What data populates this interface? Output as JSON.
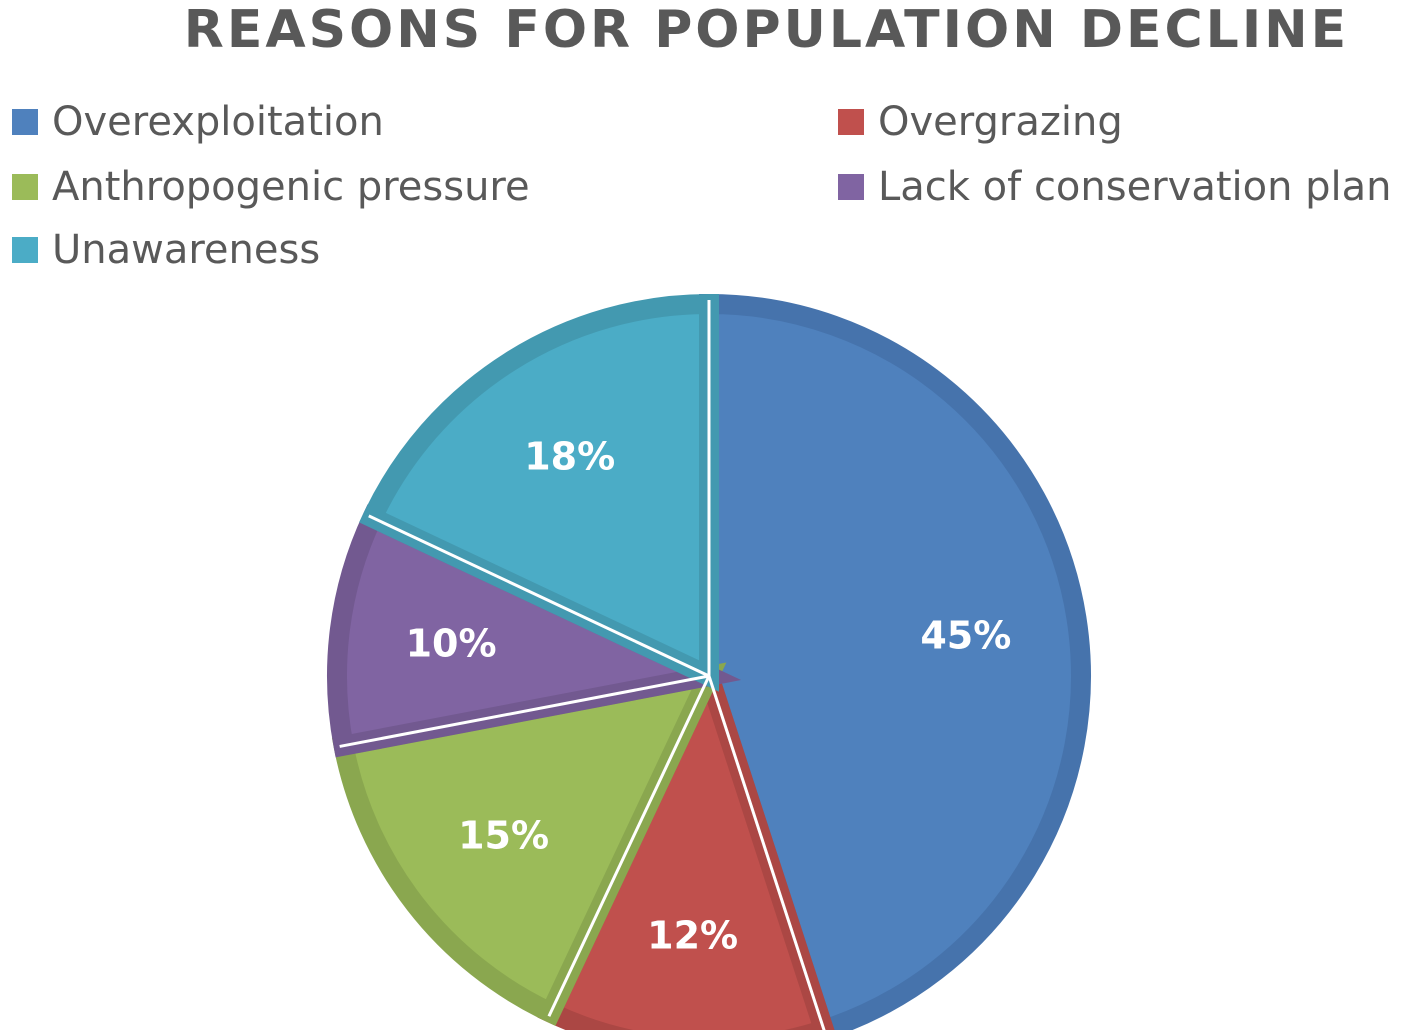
{
  "chart_data": {
    "type": "pie",
    "title": "REASONS FOR POPULATION DECLINE",
    "legend_position": "top",
    "slices": [
      {
        "name": "Overexploitation",
        "value": 45,
        "label": "45%",
        "color": "#4F81BD",
        "edge": "#4673AC"
      },
      {
        "name": "Overgrazing",
        "value": 12,
        "label": "12%",
        "color": "#C0504D",
        "edge": "#AB4744"
      },
      {
        "name": "Anthropogenic pressure",
        "value": 15,
        "label": "15%",
        "color": "#9BBB59",
        "edge": "#8AA74F"
      },
      {
        "name": "Lack of conservation plan",
        "value": 10,
        "label": "10%",
        "color": "#8064A2",
        "edge": "#725990"
      },
      {
        "name": "Unawareness",
        "value": 18,
        "label": "18%",
        "color": "#4BACC6",
        "edge": "#4399B0"
      }
    ]
  }
}
